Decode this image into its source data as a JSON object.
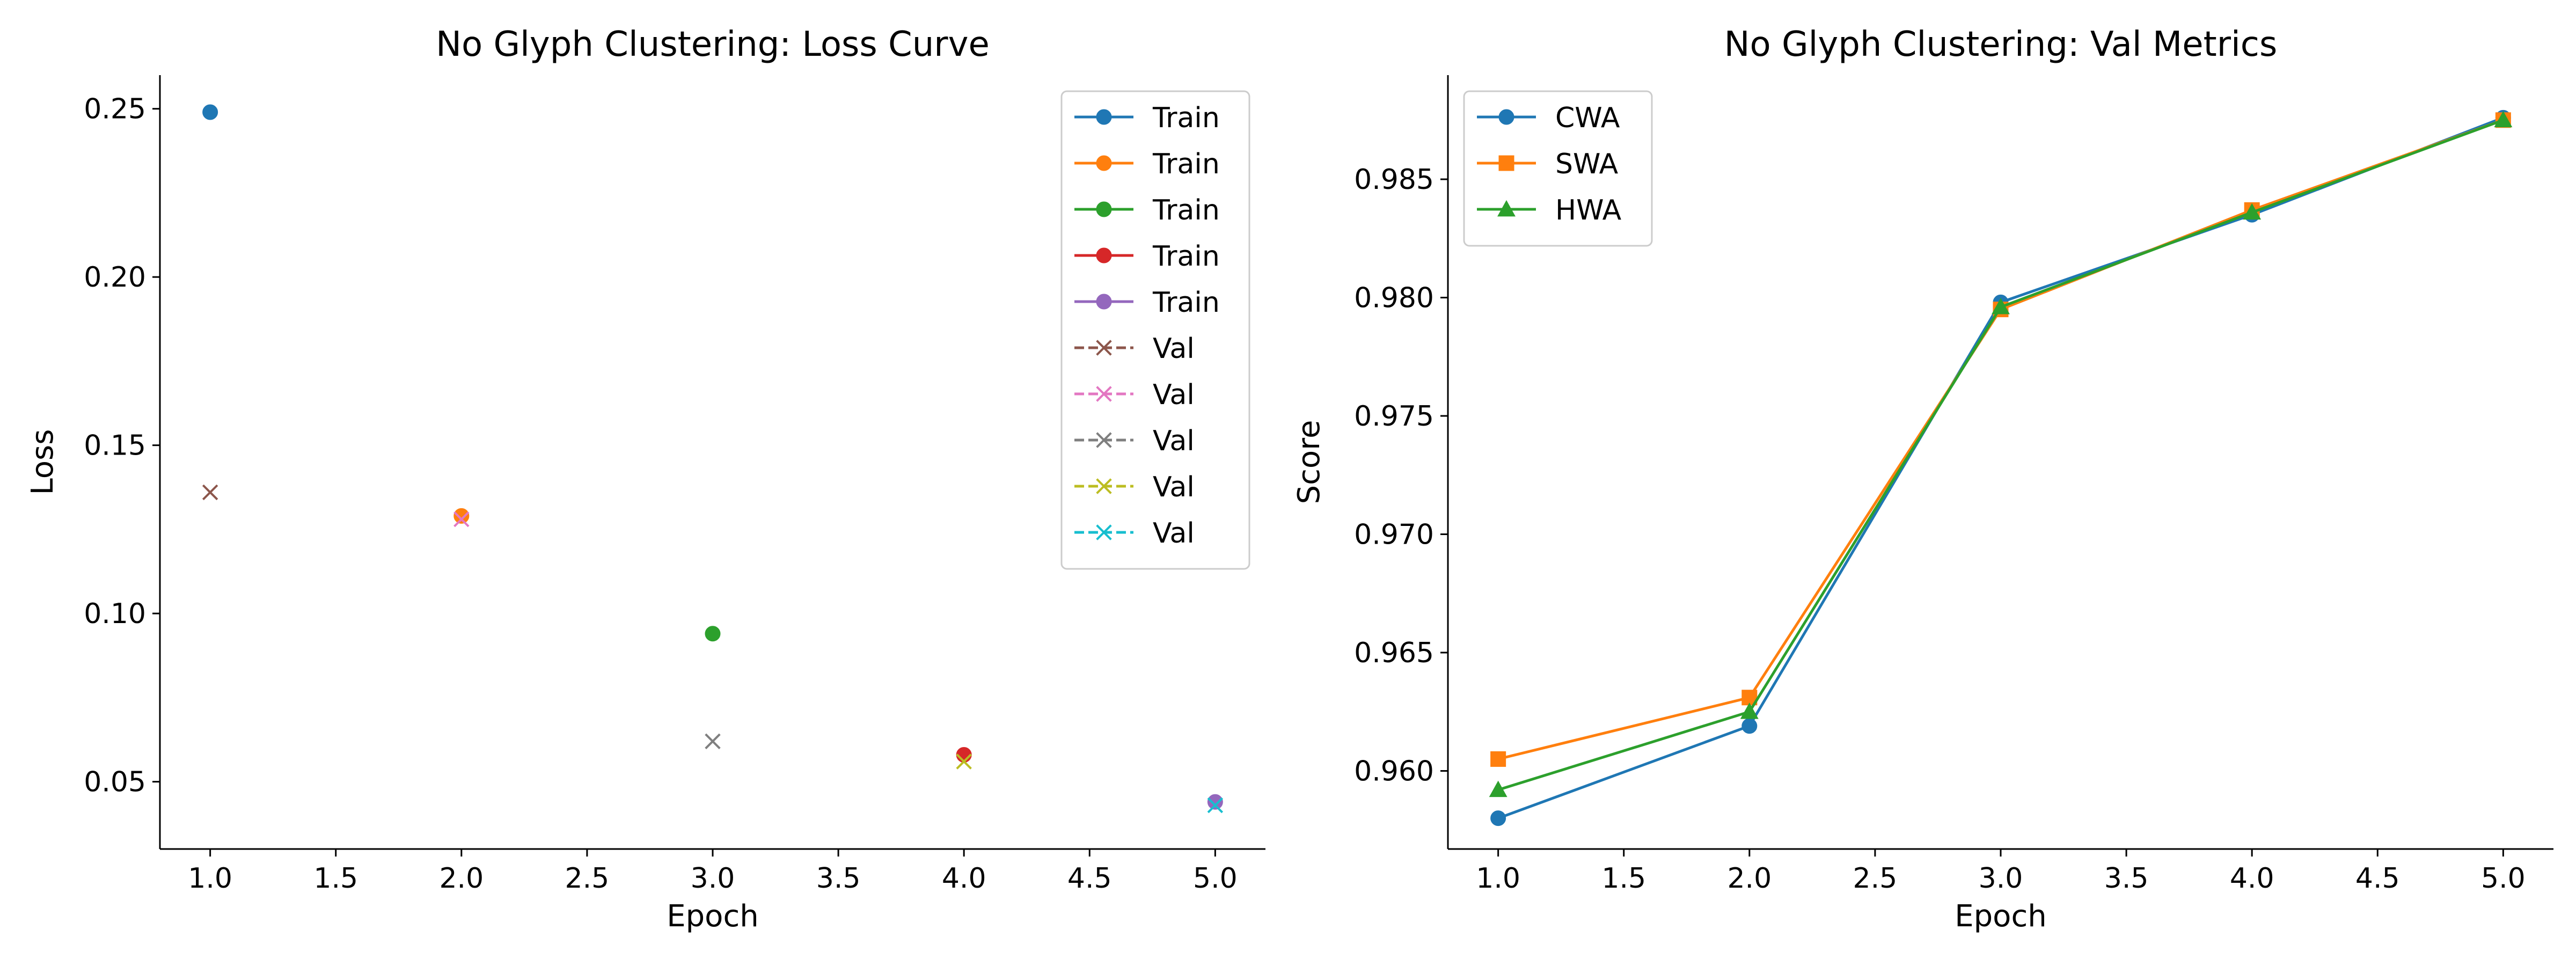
{
  "chart_data": [
    {
      "type": "scatter",
      "title": "No Glyph Clustering: Loss Curve",
      "xlabel": "Epoch",
      "ylabel": "Loss",
      "xlim": [
        0.8,
        5.2
      ],
      "ylim": [
        0.03,
        0.26
      ],
      "xticks": [
        1.0,
        1.5,
        2.0,
        2.5,
        3.0,
        3.5,
        4.0,
        4.5,
        5.0
      ],
      "yticks": [
        0.05,
        0.1,
        0.15,
        0.2,
        0.25
      ],
      "legend_position": "top-right",
      "series": [
        {
          "name": "Train",
          "color": "#1f77b4",
          "marker": "circle",
          "linestyle": "solid",
          "x": [
            1.0
          ],
          "y": [
            0.249
          ]
        },
        {
          "name": "Train",
          "color": "#ff7f0e",
          "marker": "circle",
          "linestyle": "solid",
          "x": [
            2.0
          ],
          "y": [
            0.129
          ]
        },
        {
          "name": "Train",
          "color": "#2ca02c",
          "marker": "circle",
          "linestyle": "solid",
          "x": [
            3.0
          ],
          "y": [
            0.094
          ]
        },
        {
          "name": "Train",
          "color": "#d62728",
          "marker": "circle",
          "linestyle": "solid",
          "x": [
            4.0
          ],
          "y": [
            0.058
          ]
        },
        {
          "name": "Train",
          "color": "#9467bd",
          "marker": "circle",
          "linestyle": "solid",
          "x": [
            5.0
          ],
          "y": [
            0.044
          ]
        },
        {
          "name": "Val",
          "color": "#8c564b",
          "marker": "x",
          "linestyle": "dashed",
          "x": [
            1.0
          ],
          "y": [
            0.136
          ]
        },
        {
          "name": "Val",
          "color": "#e377c2",
          "marker": "x",
          "linestyle": "dashed",
          "x": [
            2.0
          ],
          "y": [
            0.128
          ]
        },
        {
          "name": "Val",
          "color": "#7f7f7f",
          "marker": "x",
          "linestyle": "dashed",
          "x": [
            3.0
          ],
          "y": [
            0.062
          ]
        },
        {
          "name": "Val",
          "color": "#bcbd22",
          "marker": "x",
          "linestyle": "dashed",
          "x": [
            4.0
          ],
          "y": [
            0.056
          ]
        },
        {
          "name": "Val",
          "color": "#17becf",
          "marker": "x",
          "linestyle": "dashed",
          "x": [
            5.0
          ],
          "y": [
            0.043
          ]
        }
      ]
    },
    {
      "type": "line",
      "title": "No Glyph Clustering: Val Metrics",
      "xlabel": "Epoch",
      "ylabel": "Score",
      "xlim": [
        0.8,
        5.2
      ],
      "ylim": [
        0.9567,
        0.9894
      ],
      "xticks": [
        1.0,
        1.5,
        2.0,
        2.5,
        3.0,
        3.5,
        4.0,
        4.5,
        5.0
      ],
      "yticks": [
        0.96,
        0.965,
        0.97,
        0.975,
        0.98,
        0.985
      ],
      "legend_position": "top-left",
      "series": [
        {
          "name": "CWA",
          "color": "#1f77b4",
          "marker": "circle",
          "linestyle": "solid",
          "x": [
            1,
            2,
            3,
            4,
            5
          ],
          "y": [
            0.958,
            0.9619,
            0.9798,
            0.9835,
            0.9876
          ]
        },
        {
          "name": "SWA",
          "color": "#ff7f0e",
          "marker": "square",
          "linestyle": "solid",
          "x": [
            1,
            2,
            3,
            4,
            5
          ],
          "y": [
            0.9605,
            0.9631,
            0.9795,
            0.9837,
            0.9875
          ]
        },
        {
          "name": "HWA",
          "color": "#2ca02c",
          "marker": "triangle",
          "linestyle": "solid",
          "x": [
            1,
            2,
            3,
            4,
            5
          ],
          "y": [
            0.9592,
            0.9625,
            0.9796,
            0.9836,
            0.9875
          ]
        }
      ]
    }
  ]
}
